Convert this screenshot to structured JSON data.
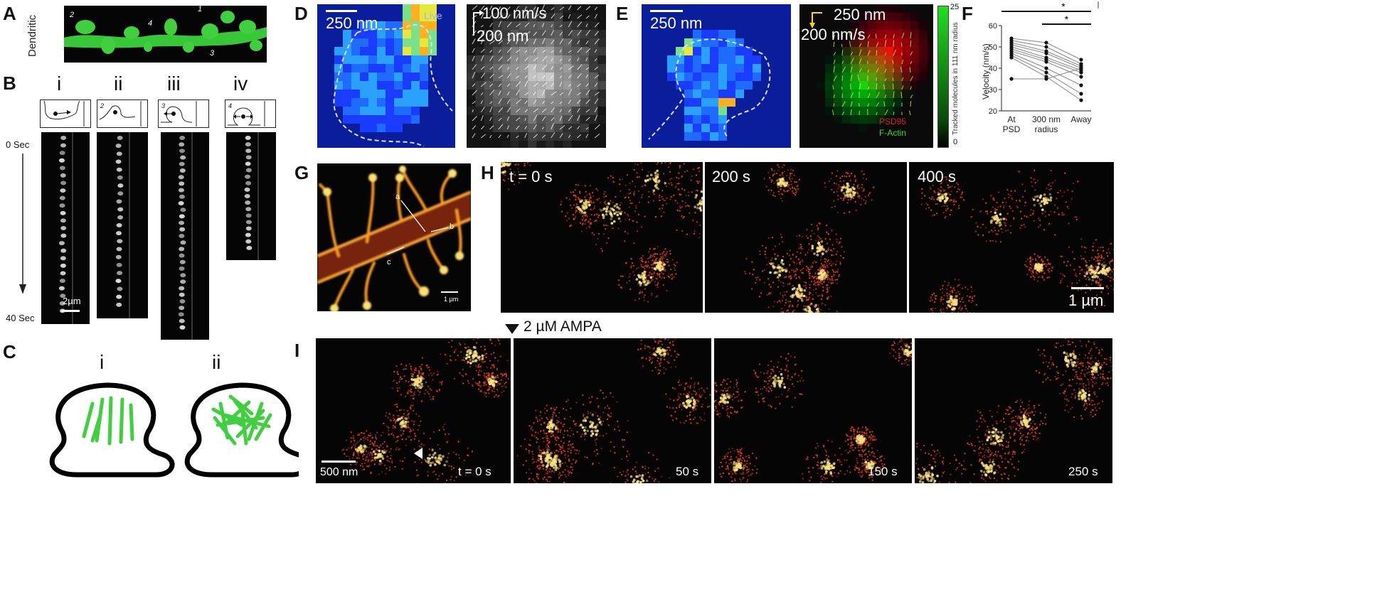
{
  "panels": {
    "A": {
      "label": "A",
      "ylabel": "Dendritic Spines",
      "spine_ids": [
        "2",
        "4",
        "1",
        "3"
      ]
    },
    "B": {
      "label": "B",
      "columns": [
        "i",
        "ii",
        "iii",
        "iv"
      ],
      "spine_ids": [
        "2",
        "3",
        "4"
      ],
      "time_start": "0 Sec",
      "time_end": "40 Sec",
      "scale": "2µm"
    },
    "C": {
      "label": "C",
      "items": [
        "i",
        "ii"
      ]
    },
    "D": {
      "label": "D",
      "scale": "250 nm",
      "live": "Live",
      "vel_scale_x": "100 nm/s",
      "vel_scale_y": "200 nm"
    },
    "E": {
      "label": "E",
      "scale": "250 nm",
      "vel_scale_x": "250 nm",
      "vel_scale_y": "200 nm/s",
      "colorbar_title": "Tracked molecules in 111 nm radius",
      "colorbar_max": "25",
      "colorbar_min": "0",
      "legend_psd": "PSD95",
      "legend_actin": "F-Actin"
    },
    "G": {
      "label": "G",
      "lines": [
        "a",
        "b",
        "c"
      ],
      "scale": "1 µm"
    },
    "H": {
      "label": "H",
      "frames": [
        "t = 0 s",
        "200 s",
        "400 s"
      ],
      "scale": "1 µm"
    },
    "I": {
      "label": "I",
      "treatment": "2 µM AMPA",
      "frames": [
        "t = 0 s",
        "50 s",
        "150 s",
        "250 s"
      ],
      "scale": "500 nm"
    },
    "F": {
      "label": "F",
      "sig1": "*",
      "sig2": "*"
    }
  },
  "chart_data": {
    "type": "line",
    "categories": [
      "At PSD",
      "300 nm radius",
      "Away"
    ],
    "ylabel": "Velocity (nm/s)",
    "ylim": [
      20,
      60
    ],
    "yticks": [
      20,
      30,
      40,
      50,
      60
    ],
    "series": [
      {
        "values": [
          54,
          52,
          44
        ]
      },
      {
        "values": [
          53,
          50,
          42
        ]
      },
      {
        "values": [
          52,
          48,
          41
        ]
      },
      {
        "values": [
          51,
          47,
          40
        ]
      },
      {
        "values": [
          50,
          45,
          39
        ]
      },
      {
        "values": [
          49,
          44,
          38
        ]
      },
      {
        "values": [
          48,
          43,
          36
        ]
      },
      {
        "values": [
          47,
          40,
          32
        ]
      },
      {
        "values": [
          46,
          38,
          28
        ]
      },
      {
        "values": [
          45,
          36,
          25
        ]
      },
      {
        "values": [
          35,
          35,
          40
        ]
      }
    ]
  },
  "colors": {
    "green": "#2ec82e",
    "spine": "#3fcf3f",
    "heat": "#ffb000",
    "blue_field": "#0a1e9c"
  }
}
